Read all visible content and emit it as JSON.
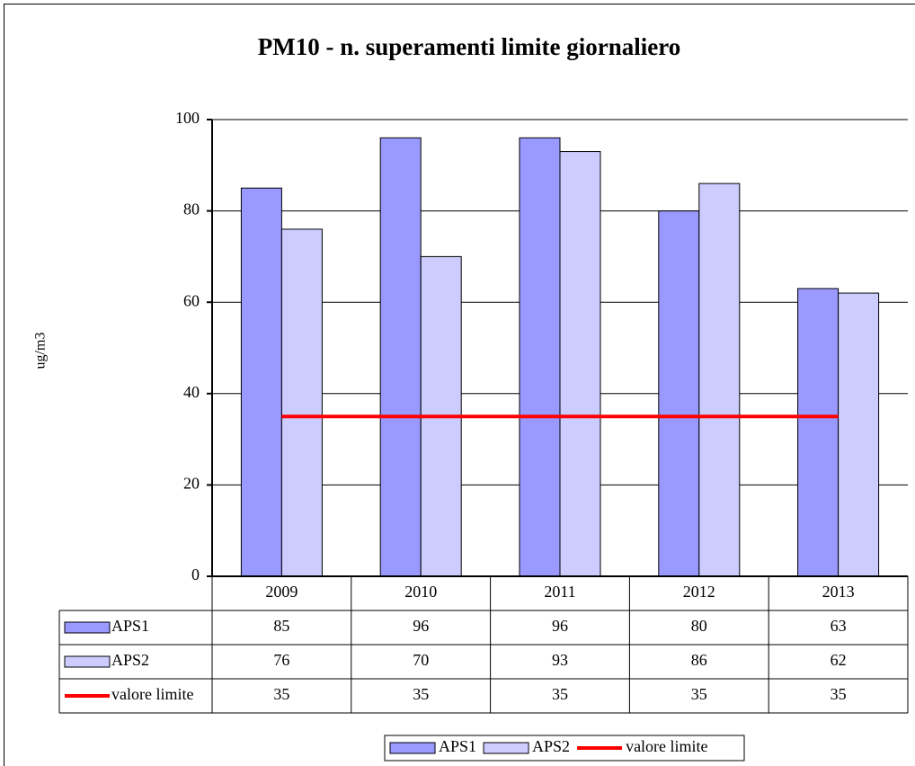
{
  "chart_data": {
    "type": "bar",
    "title": "PM10 - n. superamenti limite giornaliero",
    "y_label": "ug/m3",
    "categories": [
      "2009",
      "2010",
      "2011",
      "2012",
      "2013"
    ],
    "series": [
      {
        "name": "APS1",
        "type": "bar",
        "color": "#9999ff",
        "values": [
          85,
          96,
          96,
          80,
          63
        ]
      },
      {
        "name": "APS2",
        "type": "bar",
        "color": "#ccccff",
        "values": [
          76,
          70,
          93,
          86,
          62
        ]
      },
      {
        "name": "valore limite",
        "type": "line",
        "color": "#ff0000",
        "values": [
          35,
          35,
          35,
          35,
          35
        ]
      }
    ],
    "ylim": [
      0,
      100
    ],
    "yticks": [
      0,
      20,
      40,
      60,
      80,
      100
    ],
    "grid": true,
    "legend": "bottom",
    "data_table": true
  }
}
